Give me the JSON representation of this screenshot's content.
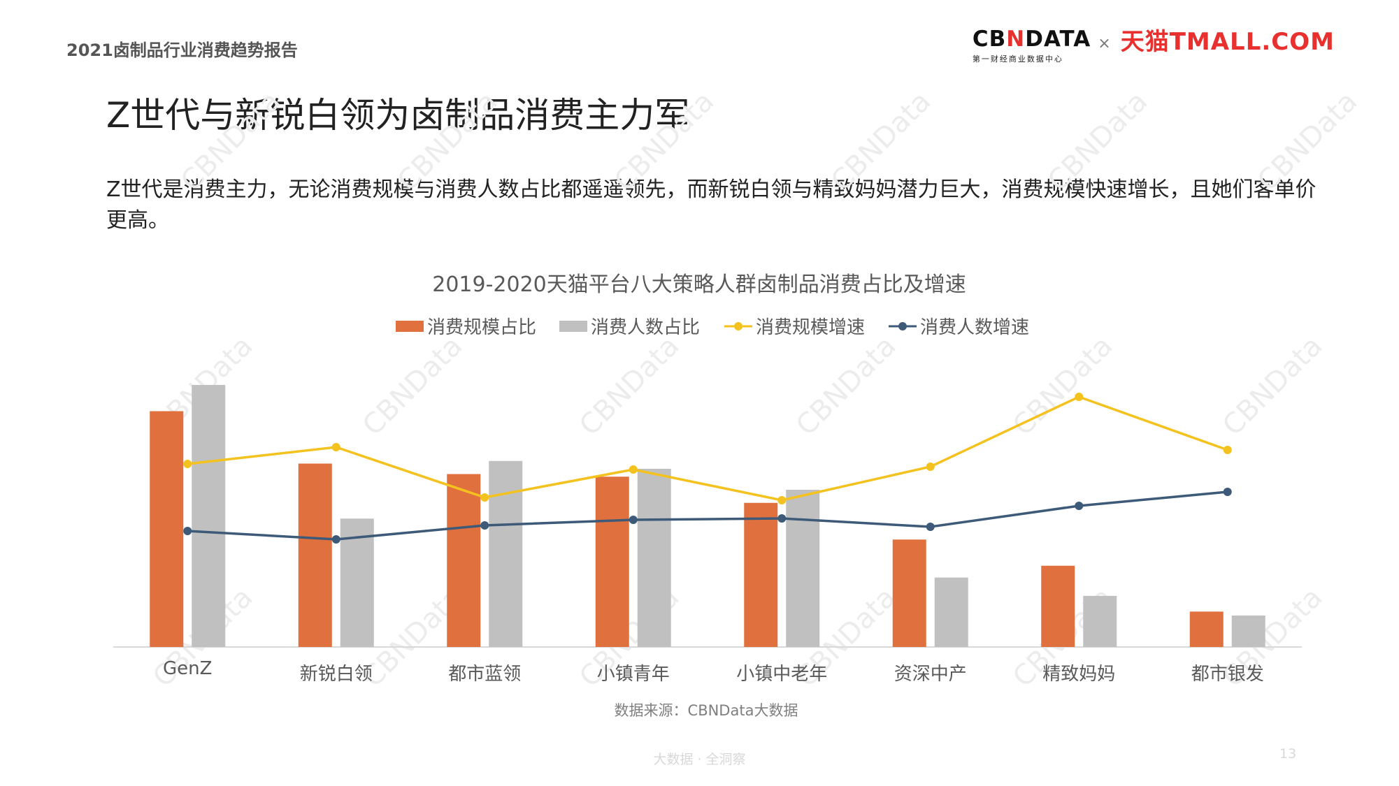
{
  "header": {
    "report_title": "2021卤制品行业消费趋势报告",
    "brand_cbn_prefix": "CB",
    "brand_cbn_accent": "N",
    "brand_cbn_suffix": "DATA",
    "brand_cbn_sub": "第一财经商业数据中心",
    "brand_times": "×",
    "brand_tmall": "天猫TMALL.COM"
  },
  "headline": "Z世代与新锐白领为卤制品消费主力军",
  "lead": "Z世代是消费主力，无论消费规模与消费人数占比都遥遥领先，而新锐白领与精致妈妈潜力巨大，消费规模快速增长，且她们客单价更高。",
  "watermark_text": "CBNData",
  "chart_data": {
    "type": "bar",
    "title": "2019-2020天猫平台八大策略人群卤制品消费占比及增速",
    "source": "数据来源：CBNData大数据",
    "categories": [
      "GenZ",
      "新锐白领",
      "都市蓝领",
      "小镇青年",
      "小镇中老年",
      "资深中产",
      "精致妈妈",
      "都市银发"
    ],
    "series": [
      {
        "name": "消费规模占比",
        "kind": "bar",
        "axis": "left",
        "color": "#e0703d",
        "values": [
          90,
          70,
          66,
          65,
          55,
          41,
          31,
          13.5
        ]
      },
      {
        "name": "消费人数占比",
        "kind": "bar",
        "axis": "left",
        "color": "#c0c0c0",
        "values": [
          100,
          49,
          71,
          68,
          60,
          26.5,
          19.5,
          12
        ]
      },
      {
        "name": "消费规模增速",
        "kind": "line",
        "axis": "right",
        "color": "#f4c21f",
        "values": [
          64,
          70,
          52,
          62,
          51,
          63,
          88,
          69
        ]
      },
      {
        "name": "消费人数增速",
        "kind": "line",
        "axis": "right",
        "color": "#3d5a78",
        "values": [
          40,
          37,
          42,
          44,
          44.5,
          41.5,
          49,
          54
        ]
      }
    ],
    "y_left_range": [
      0,
      100
    ],
    "y_right_range": [
      -100,
      100
    ],
    "y_axes_visible": false,
    "grid": false,
    "legend_position": "top"
  },
  "footer": {
    "center_text": "大数据 · 全洞察",
    "page_number": "13"
  }
}
